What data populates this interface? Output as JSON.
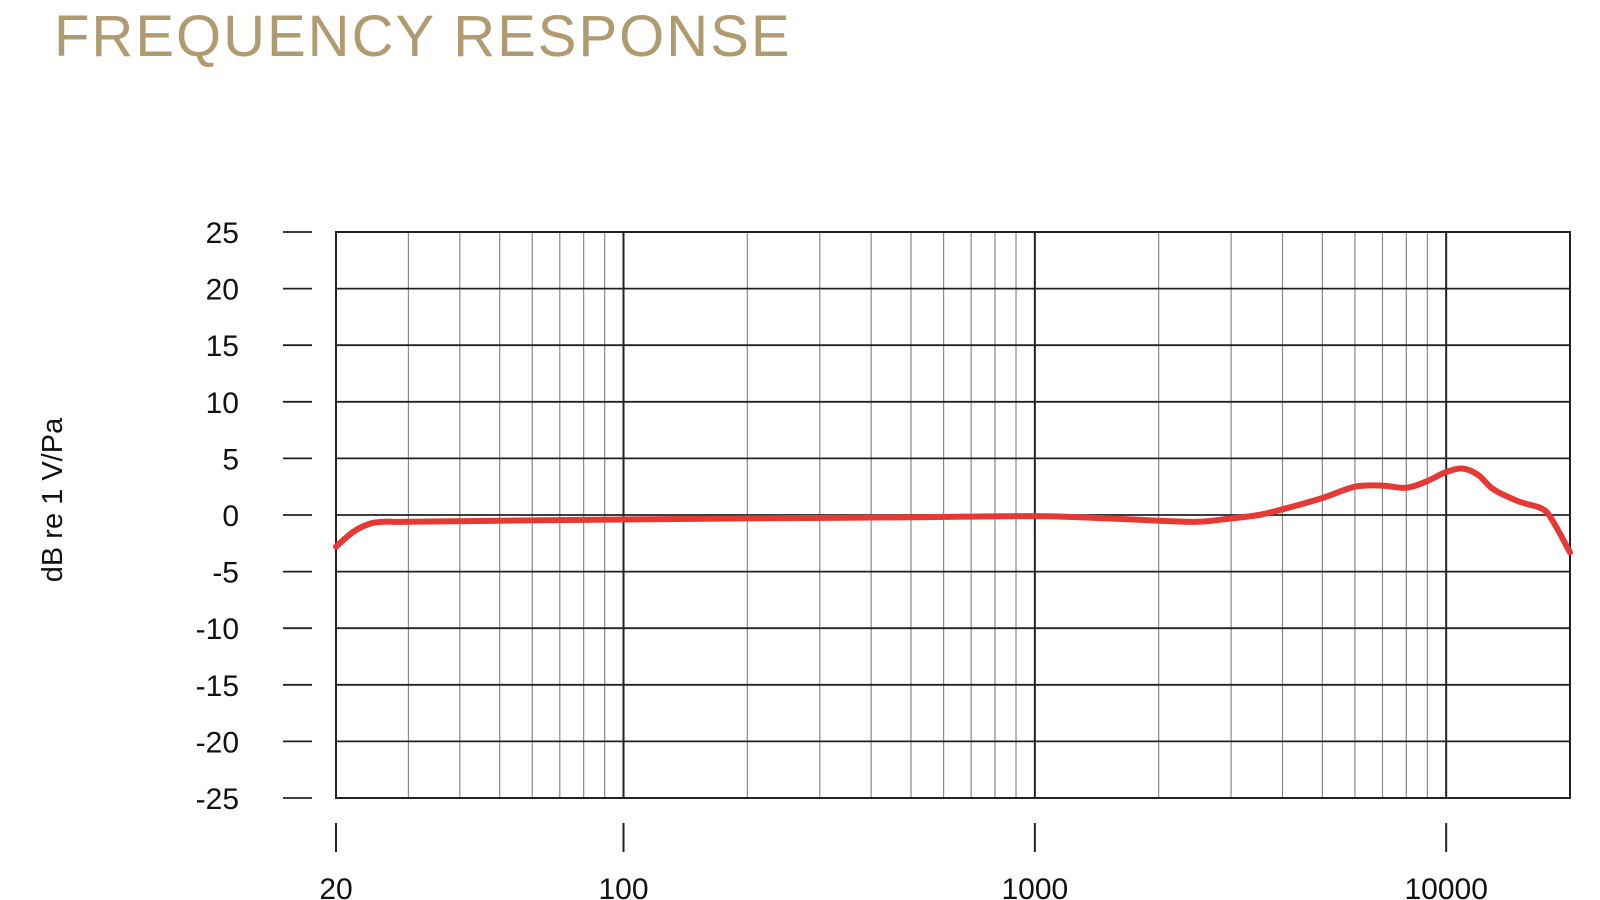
{
  "title": "FREQUENCY RESPONSE",
  "colors": {
    "title": "#b09a6f",
    "curve": "#e53935",
    "grid_major": "#222222",
    "grid_minor": "#8a8a8a"
  },
  "chart_data": {
    "type": "line",
    "xscale": "log",
    "xlim": [
      20,
      20000
    ],
    "ylim": [
      -25,
      25
    ],
    "ylabel": "dB re 1 V/Pa",
    "xlabel": "",
    "grid": true,
    "xticks": [
      20,
      100,
      1000,
      10000
    ],
    "yticks": [
      25,
      20,
      15,
      10,
      5,
      0,
      -5,
      -10,
      -15,
      -20,
      -25
    ],
    "series": [
      {
        "x": [
          20,
          22,
          24,
          26,
          30,
          50,
          100,
          200,
          500,
          1000,
          1500,
          2000,
          2500,
          3000,
          3500,
          4000,
          5000,
          6000,
          7000,
          8000,
          9000,
          10000,
          11000,
          12000,
          13000,
          15000,
          17000,
          18000,
          20000
        ],
        "y": [
          -2.8,
          -1.5,
          -0.8,
          -0.6,
          -0.6,
          -0.5,
          -0.4,
          -0.3,
          -0.2,
          -0.1,
          -0.3,
          -0.5,
          -0.6,
          -0.3,
          0.0,
          0.5,
          1.5,
          2.5,
          2.6,
          2.4,
          3.0,
          3.8,
          4.1,
          3.5,
          2.3,
          1.2,
          0.6,
          -0.3,
          -3.3
        ]
      }
    ]
  }
}
